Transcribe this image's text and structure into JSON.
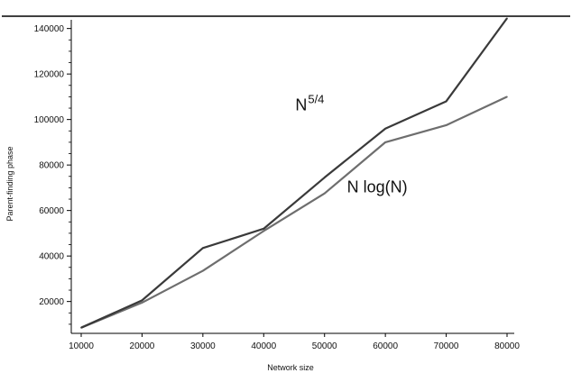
{
  "chart_data": {
    "type": "line",
    "title": "",
    "xlabel": "Network size",
    "ylabel": "Parent-finding phase",
    "x": [
      10000,
      20000,
      30000,
      40000,
      50000,
      60000,
      70000,
      80000
    ],
    "xlim": [
      10000,
      80000
    ],
    "ylim": [
      6000,
      150000
    ],
    "xticks": [
      "10000",
      "20000",
      "30000",
      "40000",
      "50000",
      "60000",
      "70000",
      "80000"
    ],
    "yticks": [
      "20000",
      "40000",
      "60000",
      "80000",
      "100000",
      "120000",
      "140000"
    ],
    "grid": false,
    "series": [
      {
        "name": "N^5/4",
        "color": "#3a3a3a",
        "values": [
          8500,
          20500,
          43500,
          52000,
          74500,
          96000,
          108000,
          144500
        ]
      },
      {
        "name": "N log(N)",
        "color": "#6e6e6e",
        "values": [
          8500,
          19500,
          33500,
          51000,
          67500,
          90000,
          97500,
          110000
        ]
      }
    ],
    "annotations": [
      {
        "base": "N",
        "sup": "5/4",
        "x": 45200,
        "y": 104000
      },
      {
        "base": "N log(N)",
        "sup": "",
        "x": 53700,
        "y": 68000
      }
    ]
  }
}
